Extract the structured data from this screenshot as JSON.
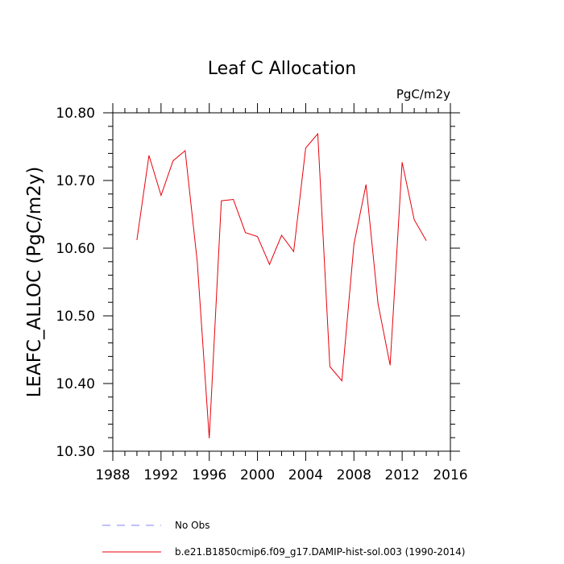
{
  "chart_data": {
    "type": "line",
    "title": "Leaf C Allocation",
    "units_label": "PgC/m2y",
    "ylabel": "LEAFC_ALLOC  (PgC/m2y)",
    "xlabel": "",
    "xlim": [
      1988,
      2016
    ],
    "ylim": [
      10.3,
      10.8
    ],
    "xticks": [
      1988,
      1992,
      1996,
      2000,
      2004,
      2008,
      2012,
      2016
    ],
    "xtick_labels": [
      "1988",
      "1992",
      "1996",
      "2000",
      "2004",
      "2008",
      "2012",
      "2016"
    ],
    "yticks": [
      10.3,
      10.4,
      10.5,
      10.6,
      10.7,
      10.8
    ],
    "ytick_labels": [
      "10.30",
      "10.40",
      "10.50",
      "10.60",
      "10.70",
      "10.80"
    ],
    "grid": false,
    "legend_placement": "bottom-left, below plot",
    "series": [
      {
        "name": "b.e21.B1850cmip6.f09_g17.DAMIP-hist-sol.003 (1990-2014)",
        "color": "#e8000b",
        "style": "solid",
        "x": [
          1990,
          1991,
          1992,
          1993,
          1994,
          1995,
          1996,
          1997,
          1998,
          1999,
          2000,
          2001,
          2002,
          2003,
          2004,
          2005,
          2006,
          2007,
          2008,
          2009,
          2010,
          2011,
          2012,
          2013,
          2014
        ],
        "y": [
          10.612,
          10.737,
          10.678,
          10.729,
          10.744,
          10.58,
          10.319,
          10.67,
          10.672,
          10.623,
          10.617,
          10.576,
          10.619,
          10.595,
          10.748,
          10.769,
          10.425,
          10.404,
          10.606,
          10.694,
          10.518,
          10.427,
          10.727,
          10.642,
          10.611
        ]
      },
      {
        "name": "No Obs",
        "color": "#8080ff",
        "style": "dashed",
        "x": [],
        "y": []
      }
    ]
  }
}
